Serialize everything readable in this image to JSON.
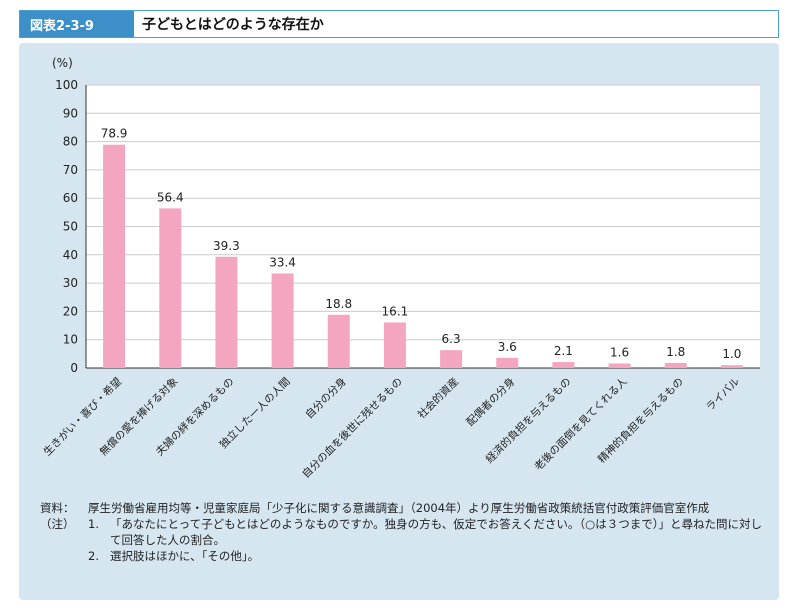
{
  "header": {
    "figure_label": "図表2-3-9",
    "title": "子どもとはどのような存在か"
  },
  "chart_data": {
    "type": "bar",
    "ylabel": "(%)",
    "ylim": [
      0,
      100
    ],
    "yticks": [
      0,
      10,
      20,
      30,
      40,
      50,
      60,
      70,
      80,
      90,
      100
    ],
    "grid": true,
    "bar_color": "#f4a6c0",
    "categories": [
      "生きがい・喜び・希望",
      "無償の愛を捧げる対象",
      "夫婦の絆を深めるもの",
      "独立した一人の人間",
      "自分の分身",
      "自分の血を後世に残せるもの",
      "社会的資産",
      "配偶者の分身",
      "経済的負担を与えるもの",
      "老後の面倒を見てくれる人",
      "精神的負担を与えるもの",
      "ライバル"
    ],
    "values": [
      78.9,
      56.4,
      39.3,
      33.4,
      18.8,
      16.1,
      6.3,
      3.6,
      2.1,
      1.6,
      1.8,
      1.0
    ],
    "value_labels": [
      "78.9",
      "56.4",
      "39.3",
      "33.4",
      "18.8",
      "16.1",
      "6.3",
      "3.6",
      "2.1",
      "1.6",
      "1.8",
      "1.0"
    ]
  },
  "notes": {
    "source_head": "資料：",
    "source_text": "厚生労働省雇用均等・児童家庭局「少子化に関する意識調査」（2004年）より厚生労働省政策統括官付政策評価官室作成",
    "note_head": "（注）",
    "note1_num": "1.",
    "note1_text": "「あなたにとって子どもとはどのようなものですか。独身の方も、仮定でお答えください。（○は３つまで）」と尋ねた問に対して回答した人の割合。",
    "note2_num": "2.",
    "note2_text": "選択肢はほかに、「その他」。"
  }
}
